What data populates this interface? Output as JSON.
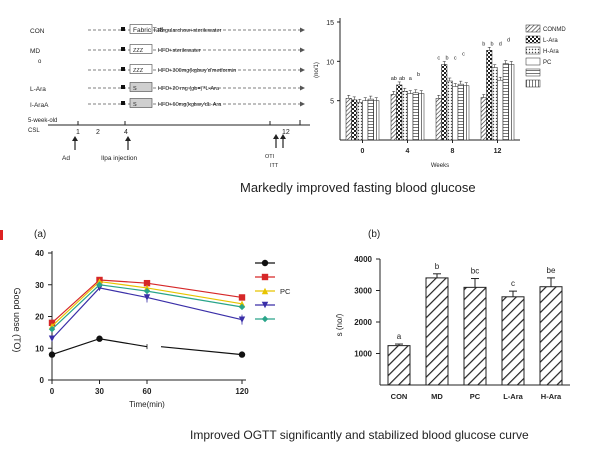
{
  "protocol": {
    "groups": [
      {
        "label": "CON",
        "box": "Fabric Taff",
        "treatment": "Regularchow+sterilewater"
      },
      {
        "label": "MD",
        "sublabel": "o",
        "box": "ZZZ",
        "treatment": "HFD+sterilewater"
      },
      {
        "label": "",
        "box": "ZZZ",
        "treatment": "HFD+300mg(kgbwy'd'metformin"
      },
      {
        "label": "L-Ara",
        "box": "S",
        "treatment": "HFD+20 mg (gb=)'*L-Ara"
      },
      {
        "label": "I-AraA",
        "box": "S",
        "treatment": "HFD+60mg(kgbwy'dL-Ara"
      }
    ],
    "start_label": "5-week-old",
    "start_sub": "CSL",
    "week_marks": [
      "1",
      "2",
      "4",
      "12"
    ],
    "markers": [
      "Ad",
      "Ilpa injection",
      "OTI",
      "ITT"
    ]
  },
  "top_chart": {
    "title": "",
    "ylabel": "(no/1)",
    "xlabel": "Weeks",
    "legend": [
      "CONMD",
      "L-Ara",
      "H-Ara",
      "PC",
      "",
      ""
    ],
    "caption": "Markedly improved fasting blood glucose"
  },
  "chart_data": [
    {
      "type": "bar",
      "title": "",
      "xlabel": "Weeks",
      "ylabel": "(no/1)",
      "categories": [
        "0",
        "4",
        "8",
        "12"
      ],
      "ylim": [
        0,
        15
      ],
      "yticks": [
        5,
        10,
        15
      ],
      "series": [
        {
          "name": "CONMD",
          "values": [
            5.3,
            5.8,
            5.3,
            5.4
          ]
        },
        {
          "name": "L-Ara",
          "values": [
            5.1,
            7.0,
            9.6,
            11.4
          ]
        },
        {
          "name": "H-Ara",
          "values": [
            4.8,
            6.2,
            7.5,
            9.2
          ]
        },
        {
          "name": "PC",
          "values": [
            5.0,
            5.9,
            6.8,
            7.6
          ]
        },
        {
          "name": "",
          "values": [
            5.2,
            6.0,
            7.1,
            9.7
          ]
        },
        {
          "name": "",
          "values": [
            5.0,
            5.9,
            6.9,
            9.6
          ]
        }
      ],
      "letters": [
        [
          "",
          "",
          "",
          ""
        ],
        [
          "ab",
          "ab",
          "a",
          "b"
        ],
        [
          "c",
          "b",
          "c",
          "c"
        ],
        [
          "b",
          "b",
          "d",
          "d"
        ]
      ],
      "legend_position": "top-right",
      "grid": false
    },
    {
      "type": "line",
      "title": "",
      "panel_label": "(a)",
      "xlabel": "Time(min)",
      "ylabel": "Good uose (TO)",
      "x": [
        0,
        30,
        60,
        120
      ],
      "xticks": [
        0,
        30,
        60,
        120
      ],
      "ylim": [
        0,
        40
      ],
      "yticks": [
        0,
        10,
        20,
        30,
        40
      ],
      "series": [
        {
          "name": "",
          "color": "#111111",
          "marker": "circle",
          "values": [
            8,
            13,
            10.5,
            8
          ]
        },
        {
          "name": "",
          "color": "#d62728",
          "marker": "square",
          "values": [
            18,
            31.5,
            30.5,
            26
          ]
        },
        {
          "name": "PC",
          "color": "#e8c400",
          "marker": "triangle",
          "values": [
            17,
            31,
            29,
            24
          ]
        },
        {
          "name": "",
          "color": "#3a2fa8",
          "marker": "triangle-down",
          "values": [
            13,
            29,
            26,
            19
          ]
        },
        {
          "name": "",
          "color": "#2aa58a",
          "marker": "diamond",
          "values": [
            16,
            30,
            28,
            23
          ]
        }
      ],
      "legend_position": "right",
      "grid": false
    },
    {
      "type": "bar",
      "title": "",
      "panel_label": "(b)",
      "xlabel": "",
      "ylabel": "s (no/)",
      "categories": [
        "CON",
        "MD",
        "PC",
        "L-Ara",
        "H-Ara"
      ],
      "values": [
        1250,
        3400,
        3100,
        2800,
        3120
      ],
      "errors": [
        50,
        130,
        280,
        180,
        280
      ],
      "letters": [
        "a",
        "b",
        "bc",
        "c",
        "be"
      ],
      "ylim": [
        0,
        4000
      ],
      "yticks": [
        1000,
        2000,
        3000,
        4000
      ],
      "grid": false
    }
  ],
  "captions": {
    "top": "Markedly improved fasting blood glucose",
    "bottom": "Improved OGTT significantly and stabilized blood glucose curve"
  },
  "colors": {
    "line_black": "#111111",
    "line_red": "#d62728",
    "line_yellow": "#e8c400",
    "line_blue": "#3a2fa8",
    "line_teal": "#2aa58a"
  }
}
